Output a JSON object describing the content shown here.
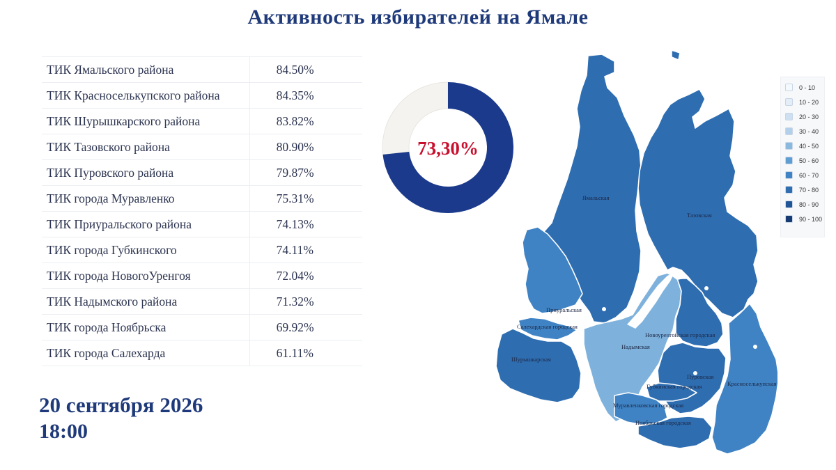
{
  "title": "Активность избирателей на Ямале",
  "table": {
    "rows": [
      {
        "name": "ТИК Ямальского района",
        "value": "84.50%"
      },
      {
        "name": "ТИК Красноселькупского района",
        "value": "84.35%"
      },
      {
        "name": "ТИК Шурышкарского района",
        "value": "83.82%"
      },
      {
        "name": "ТИК Тазовского района",
        "value": "80.90%"
      },
      {
        "name": "ТИК Пуровского района",
        "value": "79.87%"
      },
      {
        "name": "ТИК города Муравленко",
        "value": "75.31%"
      },
      {
        "name": "ТИК Приуральского района",
        "value": "74.13%"
      },
      {
        "name": "ТИК города Губкинского",
        "value": "74.11%"
      },
      {
        "name": "ТИК города НовогоУренгоя",
        "value": "72.04%"
      },
      {
        "name": "ТИК Надымского района",
        "value": "71.32%"
      },
      {
        "name": "ТИК города Ноябрьска",
        "value": "69.92%"
      },
      {
        "name": "ТИК города Салехарда",
        "value": "61.11%"
      }
    ]
  },
  "donut": {
    "label": "73,30%",
    "value": 73.3,
    "color_filled": "#1b3a8c",
    "color_empty": "#f4f3ef",
    "label_color": "#c8102e"
  },
  "chart_data": {
    "type": "pie",
    "categories": [
      "ТИК Ямальского района",
      "ТИК Красноселькупского района",
      "ТИК Шурышкарского района",
      "ТИК Тазовского района",
      "ТИК Пуровского района",
      "ТИК города Муравленко",
      "ТИК Приуральского района",
      "ТИК города Губкинского",
      "ТИК города НовогоУренгоя",
      "ТИК Надымского района",
      "ТИК города Ноябрьска",
      "ТИК города Салехарда"
    ],
    "values": [
      84.5,
      84.35,
      83.82,
      80.9,
      79.87,
      75.31,
      74.13,
      74.11,
      72.04,
      71.32,
      69.92,
      61.11
    ],
    "total_turnout": 73.3
  },
  "map": {
    "regions": [
      {
        "id": "yamal",
        "label": "Ямальская",
        "level": 80
      },
      {
        "id": "taz",
        "label": "Тазовская",
        "level": 80
      },
      {
        "id": "priural",
        "label": "Приуральская",
        "level": 70
      },
      {
        "id": "salekhard",
        "label": "Салехардская городская",
        "level": 60
      },
      {
        "id": "shuryshkar",
        "label": "Шурышкарская",
        "level": 80
      },
      {
        "id": "nadym",
        "label": "Надымская",
        "level": 70
      },
      {
        "id": "novy-urengoy",
        "label": "Новоуренгойская городская",
        "level": 70
      },
      {
        "id": "pur",
        "label": "Пуровская",
        "level": 70
      },
      {
        "id": "gubkinsky",
        "label": "Губкинская городская",
        "level": 70
      },
      {
        "id": "krasnoselkup",
        "label": "Красноселькупская",
        "level": 80
      },
      {
        "id": "muravlenko",
        "label": "Муравленковская городская",
        "level": 70
      },
      {
        "id": "noyabrsk",
        "label": "Ноябрьская городская",
        "level": 60
      }
    ],
    "colors": {
      "dark": "#2e6db0",
      "mid": "#3f83c4",
      "light": "#7eb2dc",
      "water": "#ffffff"
    }
  },
  "legend": {
    "items": [
      {
        "label": "0 - 10",
        "color": "#f4f9fd"
      },
      {
        "label": "10 - 20",
        "color": "#e3eef8"
      },
      {
        "label": "20 - 30",
        "color": "#cde0f1"
      },
      {
        "label": "30 - 40",
        "color": "#b2d0ea"
      },
      {
        "label": "40 - 50",
        "color": "#8ab9df"
      },
      {
        "label": "50 - 60",
        "color": "#5f9ed2"
      },
      {
        "label": "60 - 70",
        "color": "#3f83c4"
      },
      {
        "label": "70 - 80",
        "color": "#2e6db0"
      },
      {
        "label": "80 - 90",
        "color": "#1f5597"
      },
      {
        "label": "90 - 100",
        "color": "#163b72"
      }
    ]
  },
  "footer": {
    "date": "20 сентября 2026",
    "time": "18:00"
  }
}
